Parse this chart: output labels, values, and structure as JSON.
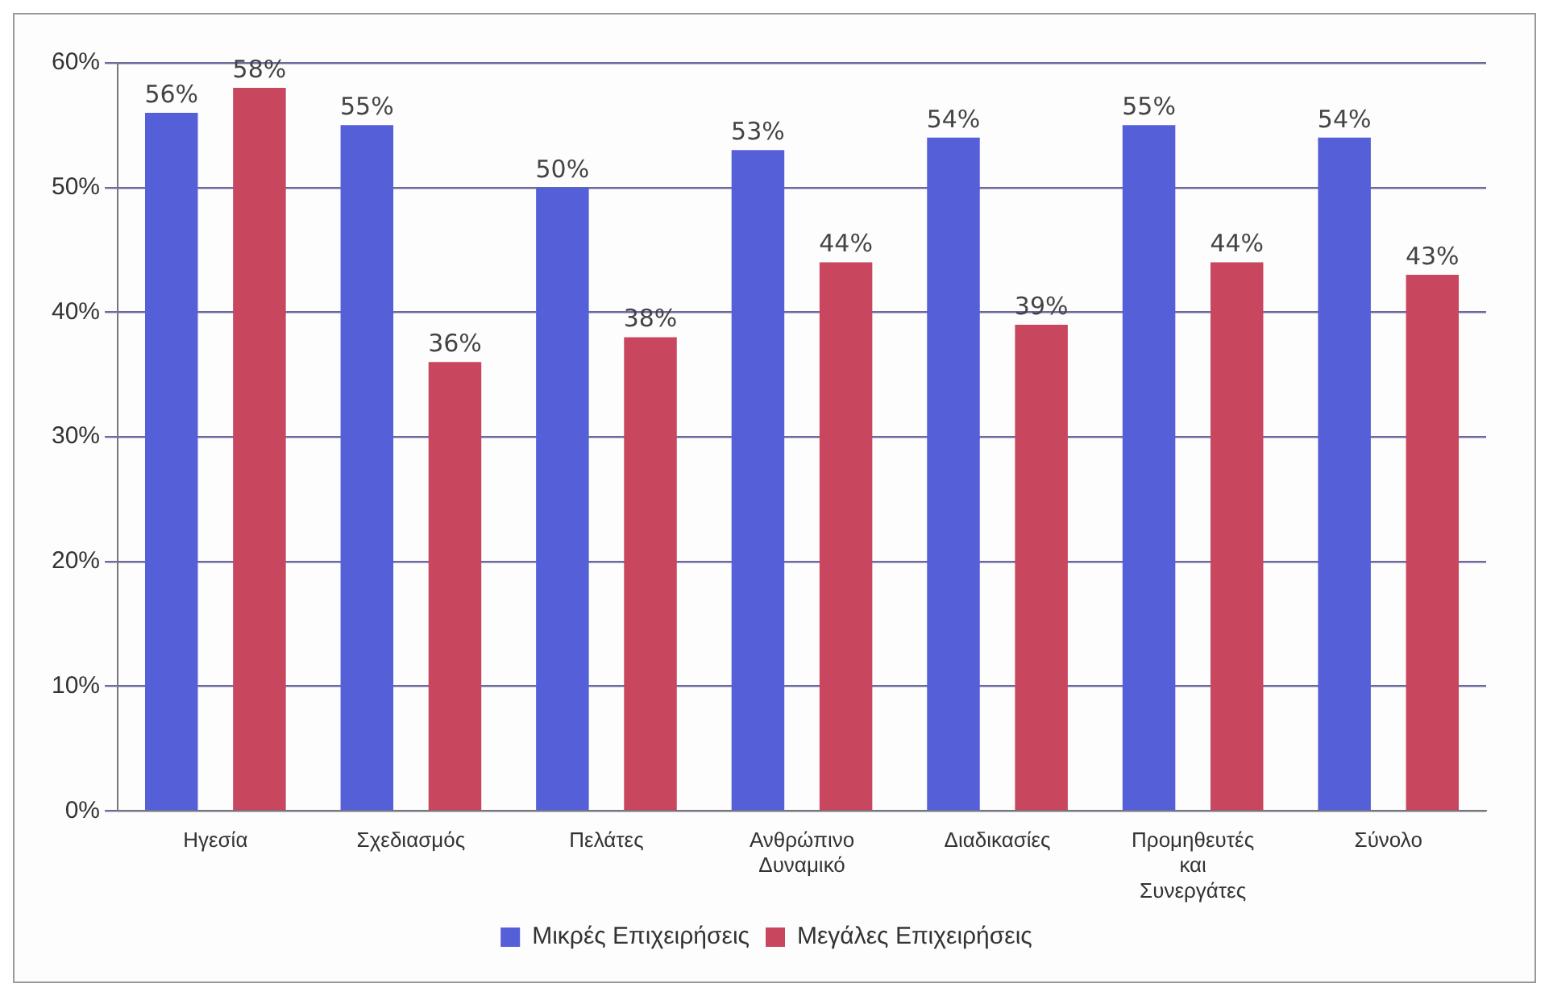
{
  "chart_data": {
    "type": "bar",
    "categories": [
      "Ηγεσία",
      "Σχεδιασμός",
      "Πελάτες",
      "Ανθρώπινο\nΔυναμικό",
      "Διαδικασίες",
      "Προμηθευτές\nκαι\nΣυνεργάτες",
      "Σύνολο"
    ],
    "series": [
      {
        "name": "Μικρές Επιχειρήσεις",
        "color": "#5560d8",
        "values": [
          56,
          55,
          50,
          53,
          54,
          55,
          54
        ],
        "value_labels": [
          "56%",
          "55%",
          "50%",
          "53%",
          "54%",
          "55%",
          "54%"
        ]
      },
      {
        "name": "Μεγάλες Επιχειρήσεις",
        "color": "#c8475f",
        "values": [
          58,
          36,
          38,
          44,
          39,
          44,
          43
        ],
        "value_labels": [
          "58%",
          "36%",
          "38%",
          "44%",
          "39%",
          "44%",
          "43%"
        ]
      }
    ],
    "ylim": [
      0,
      60
    ],
    "yticks": [
      {
        "value": 0,
        "label": "0%"
      },
      {
        "value": 10,
        "label": "10%"
      },
      {
        "value": 20,
        "label": "20%"
      },
      {
        "value": 30,
        "label": "30%"
      },
      {
        "value": 40,
        "label": "40%"
      },
      {
        "value": 50,
        "label": "50%"
      },
      {
        "value": 60,
        "label": "60%"
      }
    ],
    "grid": "y",
    "legend": "bottom"
  }
}
